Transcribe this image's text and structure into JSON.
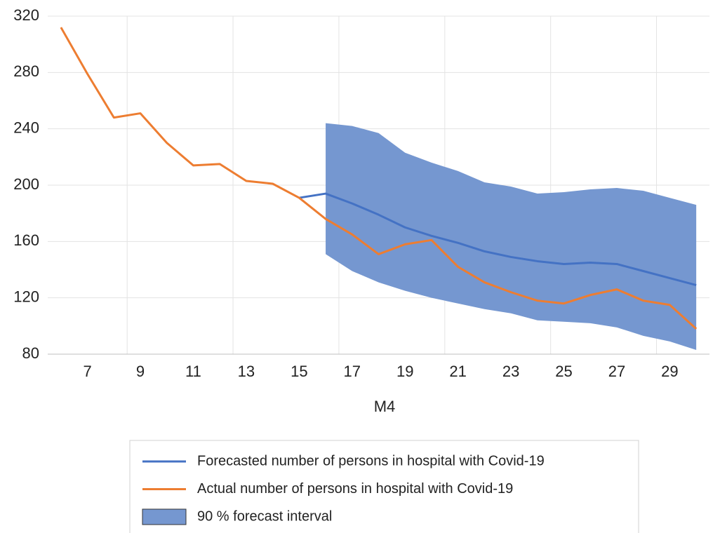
{
  "chart_data": {
    "type": "line",
    "x_label": "M4",
    "categories": [
      null,
      7,
      null,
      9,
      null,
      11,
      null,
      13,
      null,
      15,
      null,
      17,
      null,
      19,
      null,
      21,
      null,
      23,
      null,
      25,
      null,
      27,
      null,
      29,
      null
    ],
    "ylim": [
      80,
      320
    ],
    "yticks": [
      80,
      120,
      160,
      200,
      240,
      280,
      320
    ],
    "grid": true,
    "legend": "bottom",
    "series": [
      {
        "name": "Forecasted number of persons in hospital with Covid-19",
        "color": "#4472c4",
        "values": [
          null,
          null,
          null,
          null,
          null,
          null,
          null,
          null,
          null,
          191,
          194,
          187,
          179,
          170,
          164,
          159,
          153,
          149,
          146,
          144,
          145,
          144,
          139,
          134,
          129
        ]
      },
      {
        "name": "Actual number of persons in hospital with Covid-19",
        "color": "#ed7d31",
        "values": [
          312,
          279,
          248,
          251,
          230,
          214,
          215,
          203,
          201,
          191,
          176,
          165,
          151,
          158,
          161,
          142,
          131,
          124,
          118,
          116,
          122,
          126,
          118,
          115,
          98
        ]
      },
      {
        "name": "90 % forecast interval",
        "color": "#7597d0",
        "type": "area",
        "upper": [
          null,
          null,
          null,
          null,
          null,
          null,
          null,
          null,
          null,
          null,
          244,
          242,
          237,
          223,
          216,
          210,
          202,
          199,
          194,
          195,
          197,
          198,
          196,
          191,
          186
        ],
        "lower": [
          null,
          null,
          null,
          null,
          null,
          null,
          null,
          null,
          null,
          null,
          151,
          139,
          131,
          125,
          120,
          116,
          112,
          109,
          104,
          103,
          102,
          99,
          93,
          89,
          83
        ]
      }
    ]
  }
}
